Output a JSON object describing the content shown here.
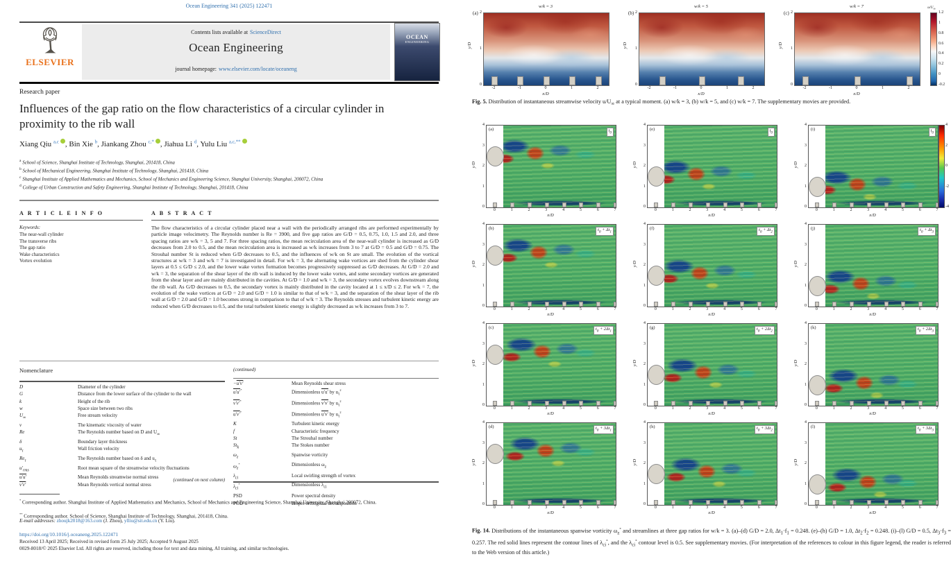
{
  "page_left": {
    "journal_ref": "Ocean Engineering 341 (2025) 122471",
    "header": {
      "contents_prefix": "Contents lists available at",
      "sciencedirect": "ScienceDirect",
      "journal_name": "Ocean Engineering",
      "homepage_prefix": "journal homepage:",
      "homepage_url": "www.elsevier.com/locate/oceaneng",
      "publisher_wordmark": "ELSEVIER",
      "cover_line1": "OCEAN",
      "cover_line2": "ENGINEERING"
    },
    "article_type": "Research paper",
    "title": "Influences of the gap ratio on the flow characteristics of a circular cylinder in proximity to the rib wall",
    "authors": [
      {
        "name": "Xiang Qiu",
        "sup": "a,c",
        "orcid": true
      },
      {
        "name": "Bin Xie",
        "sup": "b",
        "orcid": false
      },
      {
        "name": "Jiankang Zhou",
        "sup": "c,*",
        "orcid": true
      },
      {
        "name": "Jiahua Li",
        "sup": "d",
        "orcid": false
      },
      {
        "name": "Yulu Liu",
        "sup": "a,c,**",
        "orcid": true
      }
    ],
    "affiliations": [
      {
        "sup": "a",
        "text": "School of Science, Shanghai Institute of Technology, Shanghai, 201418, China"
      },
      {
        "sup": "b",
        "text": "School of Mechanical Engineering, Shanghai Institute of Technology, Shanghai, 201418, China"
      },
      {
        "sup": "c",
        "text": "Shanghai Institute of Applied Mathematics and Mechanics, School of Mechanics and Engineering Science, Shanghai University, Shanghai, 200072, China"
      },
      {
        "sup": "d",
        "text": "College of Urban Construction and Safety Engineering, Shanghai Institute of Technology, Shanghai, 201418, China"
      }
    ],
    "article_info": {
      "heading": "A R T I C L E  I N F O",
      "keywords_label": "Keywords:",
      "keywords": [
        "The near-wall cylinder",
        "The transverse ribs",
        "The gap ratio",
        "Wake characteristics",
        "Vortex evolution"
      ]
    },
    "abstract": {
      "heading": "A B S T R A C T",
      "text": "The flow characteristics of a circular cylinder placed near a wall with the periodically arranged ribs are performed experimentally by particle image velocimetry. The Reynolds number is Re = 3900, and five gap ratios are G/D = 0.5, 0.75, 1.0, 1.5 and 2.0, and three spacing ratios are w/k = 3, 5 and 7. For three spacing ratios, the mean recirculation area of the near-wall cylinder is increased as G/D decreases from 2.0 to 0.5, and the mean recirculation area is increased as w/k increases from 3 to 7 at G/D = 0.5 and G/D = 0.75. The Strouhal number St is reduced when G/D decreases to 0.5, and the influences of w/k on St are small. The evolution of the vortical structures at w/k = 3 and w/k = 7 is investigated in detail. For w/k = 3, the alternating wake vortices are shed from the cylinder shear layers at 0.5 ≤ G/D ≤ 2.0, and the lower wake vortex formation becomes progressively suppressed as G/D decreases. At G/D = 2.0 and w/k = 3, the separation of the shear layer of the rib wall is induced by the lower wake vortex, and some secondary vortices are generated from the shear layer and are mainly distributed in the cavities. At G/D = 1.0 and w/k = 3, the secondary vortex evolves downstream along the rib wall. As G/D decreases to 0.5, the secondary vortex is mainly distributed in the cavity located at 1 ≤ x/D ≤ 2. For w/k = 7, the evolution of the wake vortices at G/D = 2.0 and G/D = 1.0 is similar to that of w/k = 3, and the separation of the shear layer of the rib wall at G/D = 2.0 and G/D = 1.0 becomes strong in comparison to that of w/k = 3. The Reynolds stresses and turbulent kinetic energy are reduced when G/D decreases to 0.5, and the total turbulent kinetic energy is slightly decreased as w/k increases from 3 to 7."
    },
    "nomenclature": {
      "heading": "Nomenclature",
      "left_rows": [
        {
          "s": "D",
          "d": "Diameter of the cylinder"
        },
        {
          "s": "G",
          "d": "Distance from the lower surface of the cylinder to the wall"
        },
        {
          "s": "k",
          "d": "Height of the rib"
        },
        {
          "s": "w",
          "d": "Space size between two ribs"
        },
        {
          "s": "U_{∞}",
          "d": "Free stream velocity"
        },
        {
          "s": "ν",
          "d": "The kinematic viscosity of water"
        },
        {
          "s": "Re",
          "d": "The Reynolds number based on D and U_{∞}"
        },
        {
          "s": "δ",
          "d": "Boundary layer thickness"
        },
        {
          "s": "u_{τ}",
          "d": "Wall friction velocity"
        },
        {
          "s": "Re_{τ}",
          "d": "The Reynolds number based on δ and u_{τ}"
        },
        {
          "s": "u′_{rms}",
          "d": "Root mean square of the streamwise velocity fluctuations"
        },
        {
          "s": "~{u′u′}",
          "d": "Mean Reynolds streamwise normal stress"
        },
        {
          "s": "~{v′v′}",
          "d": "Mean Reynolds vertical normal stress"
        }
      ],
      "continued_note": "(continued on next column)",
      "right_heading": "(continued)",
      "right_rows": [
        {
          "s": "−~{u′v′}",
          "d": "Mean Reynolds shear stress"
        },
        {
          "s": "~{u′u′}^{*}",
          "d": "Dimensionless ~{u′u′} by u_{τ}^{2}"
        },
        {
          "s": "~{v′v′}^{*}",
          "d": "Dimensionless ~{v′v′} by u_{τ}^{2}"
        },
        {
          "s": "~{u′v′}^{*}",
          "d": "Dimensionless ~{u′v′} by u_{τ}^{2}"
        },
        {
          "s": "K",
          "d": "Turbulent kinetic energy"
        },
        {
          "s": "f",
          "d": "Characteristic frequency"
        },
        {
          "s": "St",
          "d": "The Strouhal number"
        },
        {
          "s": "St_{k}",
          "d": "The Stokes number"
        },
        {
          "s": "ω_{z}",
          "d": "Spanwise vorticity"
        },
        {
          "s": "ω_{z}^{*}",
          "d": "Dimensionless ω_{z}"
        },
        {
          "s": "λ_{ci}",
          "d": "Local swirling strength of vortex"
        },
        {
          "s": "λ_{ci}^{*}",
          "d": "Dimensionless λ_{ci}"
        },
        {
          "s": "PSD",
          "d": "Power spectral density",
          "u": true
        },
        {
          "s": "POD",
          "d": "Proper orthogonal decomposition",
          "u": true
        }
      ]
    },
    "footnotes": {
      "fn1_marker": "*",
      "fn1": "Corresponding author. Shanghai Institute of Applied Mathematics and Mechanics, School of Mechanics and Engineering Science, Shanghai University, Shanghai 200072, China.",
      "fn2_marker": "**",
      "fn2": "Corresponding author. School of Science, Shanghai Institute of Technology, Shanghai, 201418, China.",
      "email_label": "E-mail addresses:",
      "emails": [
        {
          "address": "zhoujk2018@163.com",
          "name": "(J. Zhou),"
        },
        {
          "address": "ylliu@sit.edu.cn",
          "name": "(Y. Liu)."
        }
      ]
    },
    "publishing": {
      "doi": "https://doi.org/10.1016/j.oceaneng.2025.122471",
      "received": "Received 13 April 2025; Received in revised form 25 July 2025; Accepted 9 August 2025",
      "copyright": "0029-8018/© 2025 Elsevier Ltd. All rights are reserved, including those for text and data mining, AI training, and similar technologies."
    }
  },
  "fig5": {
    "panels": [
      {
        "label": "(a)",
        "title": "w/k = 3",
        "ribs": [
          -2,
          -1,
          0,
          1,
          2
        ]
      },
      {
        "label": "(b)",
        "title": "w/k = 5",
        "ribs": [
          -1.5,
          0,
          1.5
        ]
      },
      {
        "label": "(c)",
        "title": "w/k = 7",
        "ribs": [
          -2,
          0,
          2
        ]
      }
    ],
    "x_ticks": [
      -2,
      -1,
      0,
      1,
      2
    ],
    "y_ticks": [
      2,
      1,
      0
    ],
    "x_range": [
      -2.4,
      2.4
    ],
    "xlabel": "x/D",
    "ylabel": "y/D",
    "colorbar": {
      "label": "u/U_{∞}",
      "ticks": [
        1.2,
        1,
        0.8,
        0.6,
        0.4,
        0.2,
        0,
        -0.2
      ]
    },
    "caption_tag": "Fig. 5.",
    "caption": "Distribution of instantaneous streamwise velocity u/U_{∞} at a typical moment. (a) w/k = 3, (b) w/k = 5, and (c) w/k = 7. The supplementary movies are provided."
  },
  "fig14": {
    "columns": [
      {
        "letters": [
          "(a)",
          "(b)",
          "(c)",
          "(d)"
        ],
        "times": [
          "t_{0}",
          "t_{0} + Δt_{1}",
          "t_{0} + 2Δt_{1}",
          "t_{0} + 3Δt_{1}"
        ],
        "cylinder_y": 2.5
      },
      {
        "letters": [
          "(e)",
          "(f)",
          "(g)",
          "(h)"
        ],
        "times": [
          "t_{0}",
          "t_{0} + Δt_{2}",
          "t_{0} + 2Δt_{2}",
          "t_{0} + 3Δt_{2}"
        ],
        "cylinder_y": 1.5
      },
      {
        "letters": [
          "(i)",
          "(j)",
          "(k)",
          "(l)"
        ],
        "times": [
          "t_{0}",
          "t_{0} + Δt_{3}",
          "t_{0} + 2Δt_{3}",
          "t_{0} + 3Δt_{3}"
        ],
        "cylinder_y": 1.0
      }
    ],
    "x_ticks": [
      0,
      1,
      2,
      3,
      4,
      5,
      6,
      7
    ],
    "y_ticks": [
      4,
      3,
      2,
      1,
      0
    ],
    "xlabel": "x/D",
    "ylabel": "y/D",
    "colorbar": {
      "ticks": [
        4,
        2,
        0,
        -2,
        -4
      ]
    },
    "caption_tag": "Fig. 14.",
    "caption": "Distributions of the instantaneous spanwise vorticity ω_{z}^{*} and streamlines at three gap ratios for w/k = 3. (a)–(d) G/D = 2.0, Δt_{1}·f_{1} = 0.248. (e)–(h) G/D = 1.0, Δt_{2}·f_{2} = 0.248. (i)–(l) G/D = 0.5, Δt_{3}·f_{3} = 0.257. The red solid lines represent the contour lines of λ_{ci}^{*}, and the λ_{ci}^{*} contour level is 0.5. See supplementary movies. (For interpretation of the references to colour in this figure legend, the reader is referred to the Web version of this article.)"
  },
  "colors": {
    "link_blue": "#2f6fad",
    "elsevier_orange": "#e9711c",
    "cover_navy": "#16233f",
    "band_gray": "#ececec"
  }
}
